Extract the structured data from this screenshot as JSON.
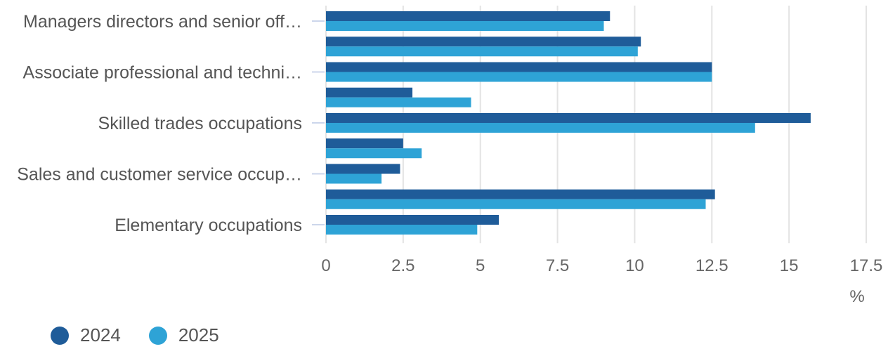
{
  "chart_data": {
    "type": "bar",
    "orientation": "horizontal",
    "categories": [
      "Managers directors and senior off…",
      "",
      "Associate professional and techni…",
      "",
      "Skilled trades occupations",
      "",
      "Sales and customer service occup…",
      "",
      "Elementary occupations"
    ],
    "series": [
      {
        "name": "2024",
        "color": "#1f5c99",
        "values": [
          9.2,
          10.2,
          12.5,
          2.8,
          15.7,
          2.5,
          2.4,
          12.6,
          5.6
        ]
      },
      {
        "name": "2025",
        "color": "#2ea3d6",
        "values": [
          9.0,
          10.1,
          12.5,
          4.7,
          13.9,
          3.1,
          1.8,
          12.3,
          4.9
        ]
      }
    ],
    "xticks": [
      "0",
      "2.5",
      "5",
      "7.5",
      "10",
      "12.5",
      "15",
      "17.5"
    ],
    "xlim": [
      0,
      17.5
    ],
    "xlabel": "%",
    "grid": true,
    "legend_position": "bottom-left"
  }
}
